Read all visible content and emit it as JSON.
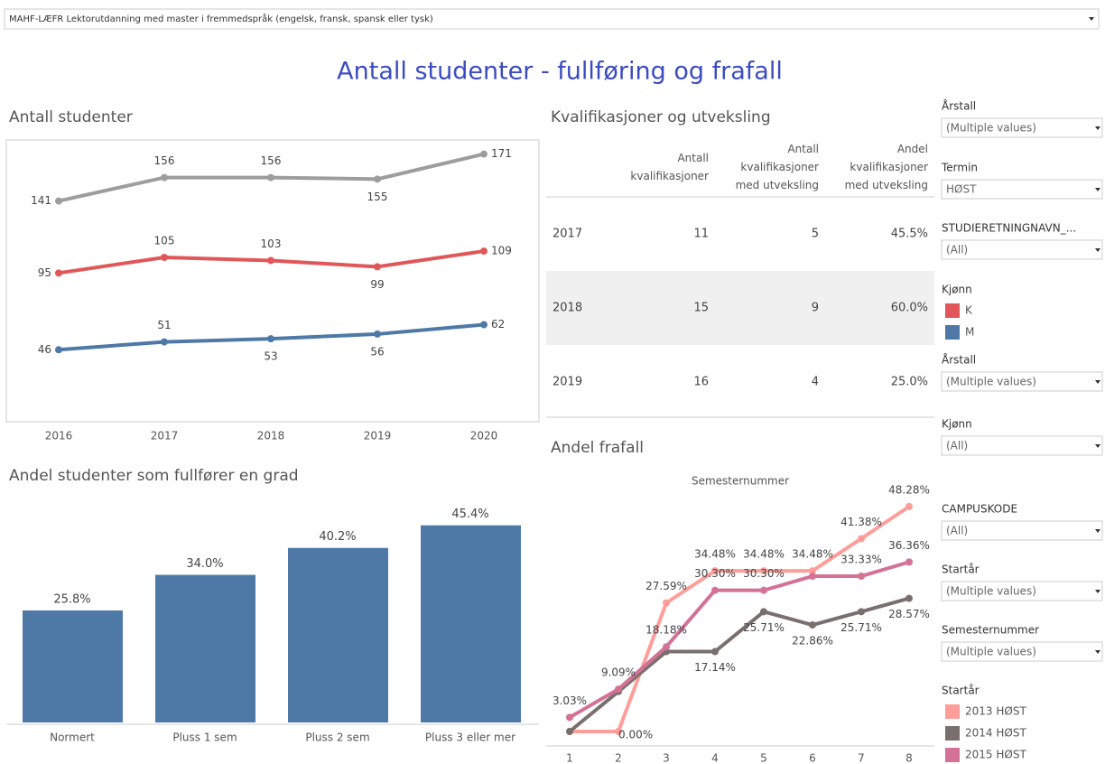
{
  "dropdown": "MAHF-LÆFR Lektorutdanning med master i fremmedspråk (engelsk, fransk, spansk eller tysk)",
  "title": "Antall studenter - fullføring og frafall",
  "chart_data": [
    {
      "type": "line",
      "title": "Antall studenter",
      "categories": [
        "2016",
        "2017",
        "2018",
        "2019",
        "2020"
      ],
      "series": [
        {
          "color": "#9d9d9d",
          "values": [
            141,
            156,
            156,
            155,
            171
          ]
        },
        {
          "name": "K",
          "color": "#e15759",
          "values": [
            95,
            105,
            103,
            99,
            109
          ]
        },
        {
          "name": "M",
          "color": "#4e79a7",
          "values": [
            46,
            51,
            53,
            56,
            62
          ]
        }
      ],
      "ylim": [
        0,
        180
      ],
      "legend_title": "Kjønn"
    },
    {
      "type": "bar",
      "title": "Andel studenter som fullfører en grad",
      "categories": [
        "Normert",
        "Pluss 1 sem",
        "Pluss 2 sem",
        "Pluss 3 eller mer"
      ],
      "values": [
        25.8,
        34.0,
        40.2,
        45.4
      ],
      "value_labels": [
        "25.8%",
        "34.0%",
        "40.2%",
        "45.4%"
      ],
      "color": "#4e79a7",
      "ylim": [
        0,
        52
      ]
    },
    {
      "type": "line",
      "title": "Andel frafall",
      "xlabel": "Semesternummer",
      "categories": [
        "1",
        "2",
        "3",
        "4",
        "5",
        "6",
        "7",
        "8"
      ],
      "series": [
        {
          "name": "2013 HØST",
          "color": "#ff9d9a",
          "values": [
            0,
            0,
            27.59,
            34.48,
            34.48,
            34.48,
            41.38,
            48.28
          ],
          "value_labels": [
            null,
            "0.00%",
            "27.59%",
            "34.48%",
            "34.48%",
            "34.48%",
            "41.38%",
            "48.28%"
          ]
        },
        {
          "name": "2014 HØST",
          "color": "#79706e",
          "values": [
            0,
            8.57,
            17.14,
            17.14,
            25.71,
            22.86,
            25.71,
            28.57
          ],
          "value_labels": [
            null,
            null,
            null,
            "17.14%",
            "25.71%",
            "22.86%",
            "25.71%",
            "28.57%"
          ]
        },
        {
          "name": "2015 HØST",
          "color": "#d37295",
          "values": [
            3.03,
            9.09,
            18.18,
            30.3,
            30.3,
            33.33,
            33.33,
            36.36
          ],
          "value_labels": [
            "3.03%",
            "9.09%",
            "18.18%",
            "30.30%",
            "30.30%",
            null,
            "33.33%",
            "36.36%"
          ]
        }
      ],
      "ylim": [
        0,
        50
      ],
      "legend_title": "Startår"
    }
  ],
  "table": {
    "title": "Kvalifikasjoner og utveksling",
    "columns": [
      "Antall kvalifikasjoner",
      "Antall kvalifikasjoner med utveksling",
      "Andel kvalifikasjoner med utveksling"
    ],
    "rows": [
      [
        "2017",
        "11",
        "5",
        "45.5%"
      ],
      [
        "2018",
        "15",
        "9",
        "60.0%"
      ],
      [
        "2019",
        "16",
        "4",
        "25.0%"
      ]
    ]
  },
  "filters": [
    {
      "label": "Årstall",
      "value": "(Multiple values)"
    },
    {
      "label": "Termin",
      "value": "HØST"
    },
    {
      "label": "STUDIERETNINGNAVN_...",
      "value": "(All)"
    },
    {
      "label": "Årstall",
      "value": "(Multiple values)"
    },
    {
      "label": "Kjønn",
      "value": "(All)"
    },
    {
      "label": "CAMPUSKODE",
      "value": "(All)"
    },
    {
      "label": "Startår",
      "value": "(Multiple values)"
    },
    {
      "label": "Semesternummer",
      "value": "(Multiple values)"
    }
  ]
}
